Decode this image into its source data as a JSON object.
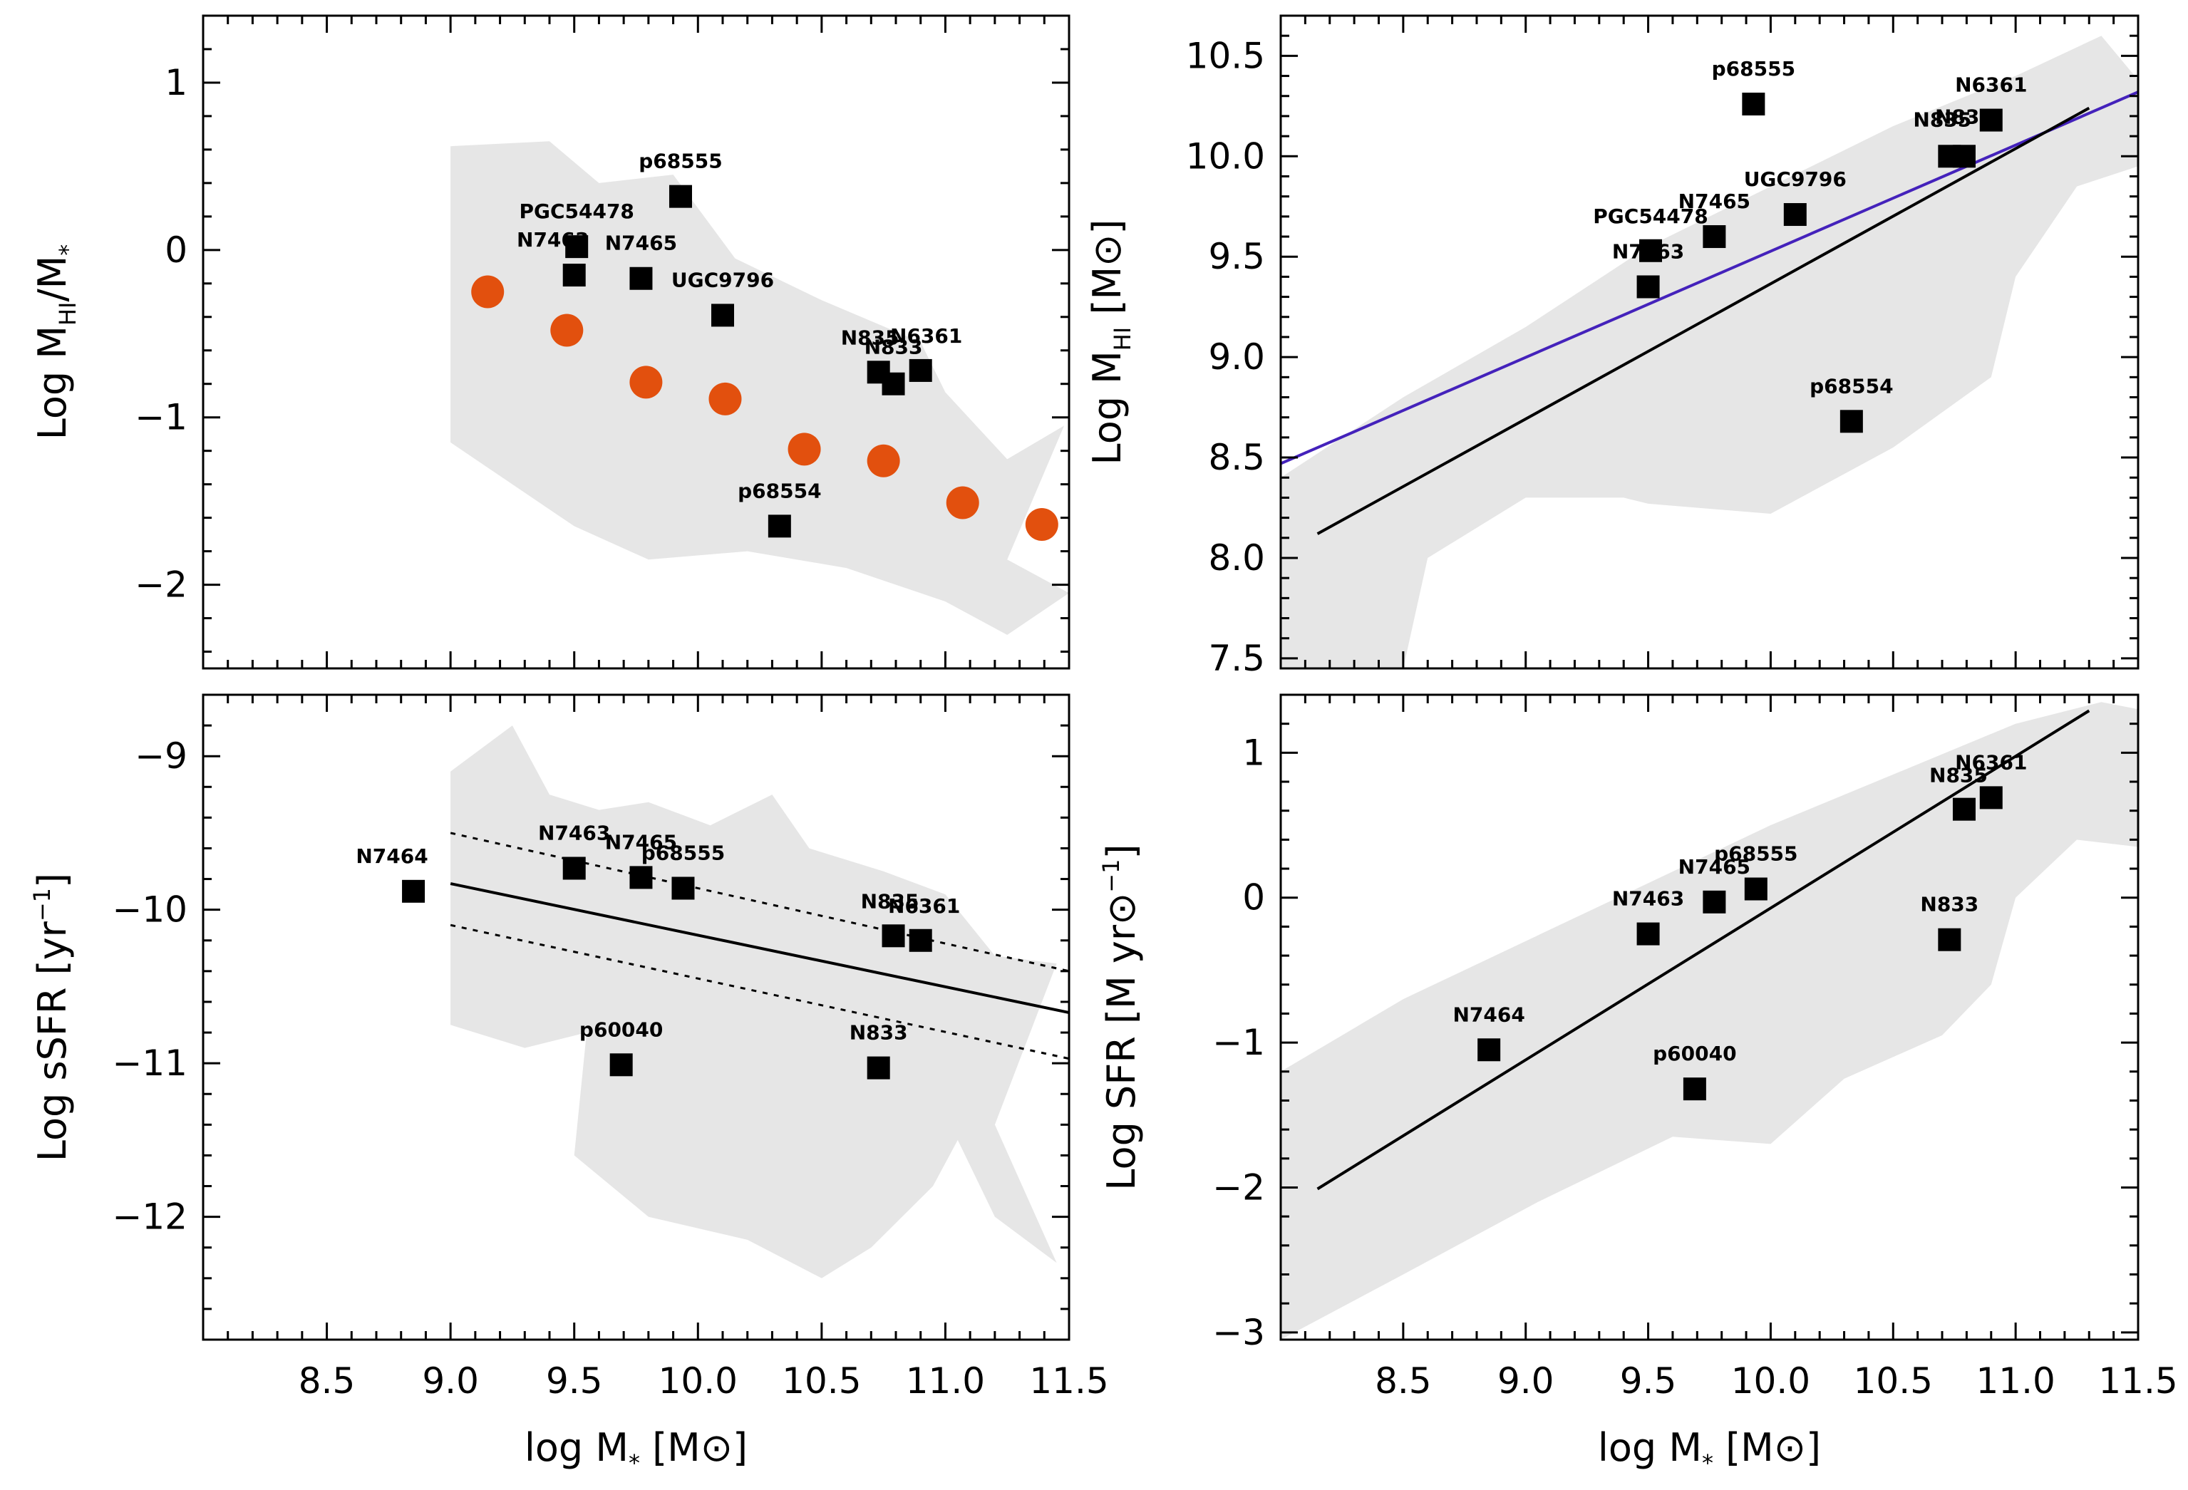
{
  "chart_data": [
    {
      "panel": "top-left",
      "type": "scatter",
      "title": "",
      "xlabel": "",
      "ylabel": {
        "prefix": "Log M",
        "sub": "HI",
        "mid": "/M",
        "sub2": "*"
      },
      "xlim": [
        8.0,
        11.5
      ],
      "ylim": [
        -2.5,
        1.4
      ],
      "yticks": [
        1,
        0,
        -1,
        -2
      ],
      "ytick_labels": [
        "1",
        "0",
        "−1",
        "−2"
      ],
      "band": [
        [
          9.0,
          -1.15
        ],
        [
          9.5,
          -1.65
        ],
        [
          9.8,
          -1.85
        ],
        [
          10.2,
          -1.8
        ],
        [
          10.6,
          -1.9
        ],
        [
          11.0,
          -2.1
        ],
        [
          11.25,
          -2.3
        ],
        [
          11.5,
          -2.05
        ],
        [
          11.25,
          -1.85
        ],
        [
          11.48,
          -1.05
        ],
        [
          11.25,
          -1.25
        ],
        [
          11.0,
          -0.85
        ],
        [
          10.9,
          -0.55
        ],
        [
          10.5,
          -0.3
        ],
        [
          10.15,
          -0.05
        ],
        [
          9.9,
          0.45
        ],
        [
          9.6,
          0.4
        ],
        [
          9.4,
          0.65
        ],
        [
          9.0,
          0.62
        ]
      ],
      "circles": [
        {
          "x": 9.15,
          "y": -0.25
        },
        {
          "x": 9.47,
          "y": -0.48
        },
        {
          "x": 9.79,
          "y": -0.79
        },
        {
          "x": 10.11,
          "y": -0.89
        },
        {
          "x": 10.43,
          "y": -1.19
        },
        {
          "x": 10.75,
          "y": -1.26
        },
        {
          "x": 11.07,
          "y": -1.51
        },
        {
          "x": 11.39,
          "y": -1.64
        }
      ],
      "points": [
        {
          "x": 9.93,
          "y": 0.32,
          "label": "p68555"
        },
        {
          "x": 9.51,
          "y": 0.02,
          "label": "PGC54478"
        },
        {
          "x": 9.5,
          "y": -0.15,
          "label": "N7463"
        },
        {
          "x": 9.77,
          "y": -0.17,
          "label": "N7465"
        },
        {
          "x": 10.1,
          "y": -0.39,
          "label": "UGC9796"
        },
        {
          "x": 10.73,
          "y": -0.73,
          "label": "N835"
        },
        {
          "x": 10.79,
          "y": -0.8,
          "label": "N833"
        },
        {
          "x": 10.9,
          "y": -0.72,
          "label": "N6361"
        },
        {
          "x": 10.33,
          "y": -1.65,
          "label": "p68554"
        }
      ]
    },
    {
      "panel": "top-right",
      "type": "scatter",
      "title": "",
      "xlabel": "",
      "ylabel": {
        "prefix": "Log M",
        "sub": "HI",
        "mid": " [M",
        "sym": "⊙",
        "suffix": "]"
      },
      "xlim": [
        8.0,
        11.5
      ],
      "ylim": [
        7.45,
        10.7
      ],
      "yticks": [
        10.5,
        10.0,
        9.5,
        9.0,
        8.5,
        8.0,
        7.5
      ],
      "ytick_labels": [
        "10.5",
        "10.0",
        "9.5",
        "9.0",
        "8.5",
        "8.0",
        "7.5"
      ],
      "band": [
        [
          8.0,
          8.4
        ],
        [
          8.5,
          8.8
        ],
        [
          9.0,
          9.15
        ],
        [
          9.5,
          9.55
        ],
        [
          10.0,
          9.85
        ],
        [
          10.5,
          10.15
        ],
        [
          11.0,
          10.4
        ],
        [
          11.35,
          10.6
        ],
        [
          11.5,
          10.38
        ],
        [
          11.5,
          9.95
        ],
        [
          11.25,
          9.85
        ],
        [
          11.0,
          9.4
        ],
        [
          10.9,
          8.9
        ],
        [
          10.5,
          8.55
        ],
        [
          10.0,
          8.22
        ],
        [
          9.5,
          8.27
        ],
        [
          9.4,
          8.3
        ],
        [
          9.0,
          8.3
        ],
        [
          8.6,
          8.0
        ],
        [
          8.5,
          7.45
        ],
        [
          8.0,
          7.45
        ]
      ],
      "lines": [
        {
          "name": "fit-blue",
          "color": "#4422bb",
          "x": [
            8.0,
            11.5
          ],
          "y": [
            8.47,
            10.32
          ]
        },
        {
          "name": "fit-black",
          "color": "#000000",
          "x": [
            8.15,
            11.3
          ],
          "y": [
            8.12,
            10.24
          ]
        }
      ],
      "points": [
        {
          "x": 9.93,
          "y": 10.26,
          "label": "p68555"
        },
        {
          "x": 10.9,
          "y": 10.18,
          "label": "N6361"
        },
        {
          "x": 10.73,
          "y": 10.0,
          "label": "N835"
        },
        {
          "x": 10.79,
          "y": 10.0,
          "label": "N833"
        },
        {
          "x": 10.1,
          "y": 9.71,
          "label": "UGC9796"
        },
        {
          "x": 9.77,
          "y": 9.6,
          "label": "N7465"
        },
        {
          "x": 9.51,
          "y": 9.53,
          "label": "PGC54478"
        },
        {
          "x": 9.5,
          "y": 9.35,
          "label": "N7463"
        },
        {
          "x": 10.33,
          "y": 8.68,
          "label": "p68554"
        }
      ]
    },
    {
      "panel": "bottom-left",
      "type": "scatter",
      "title": "",
      "xlabel": {
        "prefix": "log M",
        "sub": "*",
        "mid": " [M",
        "sym": "⊙",
        "suffix": "]"
      },
      "ylabel": {
        "prefix": "Log sSFR  [yr",
        "sup": "−1",
        "suffix": "]"
      },
      "xlim": [
        8.0,
        11.5
      ],
      "ylim": [
        -12.8,
        -8.6
      ],
      "xticks": [
        8.5,
        9.0,
        9.5,
        10.0,
        10.5,
        11.0,
        11.5
      ],
      "xtick_labels": [
        "8.5",
        "9.0",
        "9.5",
        "10.0",
        "10.5",
        "11.0",
        "11.5"
      ],
      "yticks": [
        -9,
        -10,
        -11,
        -12
      ],
      "ytick_labels": [
        "−9",
        "−10",
        "−11",
        "−12"
      ],
      "band": [
        [
          9.0,
          -9.1
        ],
        [
          9.25,
          -8.8
        ],
        [
          9.4,
          -9.25
        ],
        [
          9.6,
          -9.35
        ],
        [
          9.8,
          -9.3
        ],
        [
          10.05,
          -9.45
        ],
        [
          10.3,
          -9.25
        ],
        [
          10.45,
          -9.6
        ],
        [
          10.75,
          -9.75
        ],
        [
          11.0,
          -9.9
        ],
        [
          11.2,
          -10.3
        ],
        [
          11.45,
          -10.35
        ],
        [
          11.2,
          -11.4
        ],
        [
          11.45,
          -12.3
        ],
        [
          11.2,
          -12.0
        ],
        [
          11.05,
          -11.5
        ],
        [
          10.95,
          -11.8
        ],
        [
          10.7,
          -12.2
        ],
        [
          10.5,
          -12.4
        ],
        [
          10.2,
          -12.15
        ],
        [
          9.8,
          -12.0
        ],
        [
          9.5,
          -11.6
        ],
        [
          9.55,
          -10.8
        ],
        [
          9.3,
          -10.9
        ],
        [
          9.0,
          -10.75
        ]
      ],
      "lines": [
        {
          "name": "fit-solid",
          "color": "#000000",
          "dash": "",
          "x": [
            9.0,
            11.5
          ],
          "y": [
            -9.83,
            -10.67
          ]
        },
        {
          "name": "fit-dotted-upper",
          "color": "#000000",
          "dash": "7 9",
          "x": [
            9.0,
            11.5
          ],
          "y": [
            -9.5,
            -10.4
          ]
        },
        {
          "name": "fit-dotted-lower",
          "color": "#000000",
          "dash": "7 9",
          "x": [
            9.0,
            11.5
          ],
          "y": [
            -10.1,
            -10.97
          ]
        }
      ],
      "points": [
        {
          "x": 8.85,
          "y": -9.88,
          "label": "N7464"
        },
        {
          "x": 9.5,
          "y": -9.73,
          "label": "N7463"
        },
        {
          "x": 9.77,
          "y": -9.79,
          "label": "N7465"
        },
        {
          "x": 9.94,
          "y": -9.86,
          "label": "p68555"
        },
        {
          "x": 10.79,
          "y": -10.17,
          "label": "N835"
        },
        {
          "x": 10.9,
          "y": -10.2,
          "label": "N6361"
        },
        {
          "x": 9.69,
          "y": -11.01,
          "label": "p60040"
        },
        {
          "x": 10.73,
          "y": -11.03,
          "label": "N833"
        }
      ]
    },
    {
      "panel": "bottom-right",
      "type": "scatter",
      "title": "",
      "xlabel": {
        "prefix": "log M",
        "sub": "*",
        "mid": " [M",
        "sym": "⊙",
        "suffix": "]"
      },
      "ylabel": {
        "prefix": "Log SFR   [M",
        "sym": "⊙",
        "mid": " yr",
        "sup": "−1",
        "suffix": "]"
      },
      "xlim": [
        8.0,
        11.5
      ],
      "ylim": [
        -3.05,
        1.4
      ],
      "xticks": [
        8.5,
        9.0,
        9.5,
        10.0,
        10.5,
        11.0,
        11.5
      ],
      "xtick_labels": [
        "8.5",
        "9.0",
        "9.5",
        "10.0",
        "10.5",
        "11.0",
        "11.5"
      ],
      "yticks": [
        1,
        0,
        -1,
        -2,
        -3
      ],
      "ytick_labels": [
        "1",
        "0",
        "−1",
        "−2",
        "−3"
      ],
      "band": [
        [
          8.0,
          -1.2
        ],
        [
          8.5,
          -0.7
        ],
        [
          9.0,
          -0.3
        ],
        [
          9.5,
          0.1
        ],
        [
          10.0,
          0.5
        ],
        [
          10.5,
          0.85
        ],
        [
          11.0,
          1.2
        ],
        [
          11.35,
          1.35
        ],
        [
          11.5,
          1.3
        ],
        [
          11.5,
          0.35
        ],
        [
          11.25,
          0.4
        ],
        [
          11.0,
          0.0
        ],
        [
          10.9,
          -0.6
        ],
        [
          10.7,
          -0.95
        ],
        [
          10.3,
          -1.25
        ],
        [
          10.0,
          -1.7
        ],
        [
          9.6,
          -1.65
        ],
        [
          9.05,
          -2.1
        ],
        [
          8.5,
          -2.6
        ],
        [
          8.0,
          -3.05
        ]
      ],
      "lines": [
        {
          "name": "fit-black",
          "color": "#000000",
          "x": [
            8.15,
            11.3
          ],
          "y": [
            -2.01,
            1.29
          ]
        }
      ],
      "points": [
        {
          "x": 10.9,
          "y": 0.69,
          "label": "N6361"
        },
        {
          "x": 10.79,
          "y": 0.61,
          "label": "N835"
        },
        {
          "x": 9.94,
          "y": 0.06,
          "label": "p68555"
        },
        {
          "x": 9.77,
          "y": -0.03,
          "label": "N7465"
        },
        {
          "x": 9.5,
          "y": -0.25,
          "label": "N7463"
        },
        {
          "x": 10.73,
          "y": -0.29,
          "label": "N833"
        },
        {
          "x": 8.85,
          "y": -1.05,
          "label": "N7464"
        },
        {
          "x": 9.69,
          "y": -1.32,
          "label": "p60040"
        }
      ]
    }
  ],
  "colors": {
    "band": "#e6e6e6",
    "circle": "#e2500e",
    "marker": "#000000",
    "blue_line": "#4422bb"
  }
}
